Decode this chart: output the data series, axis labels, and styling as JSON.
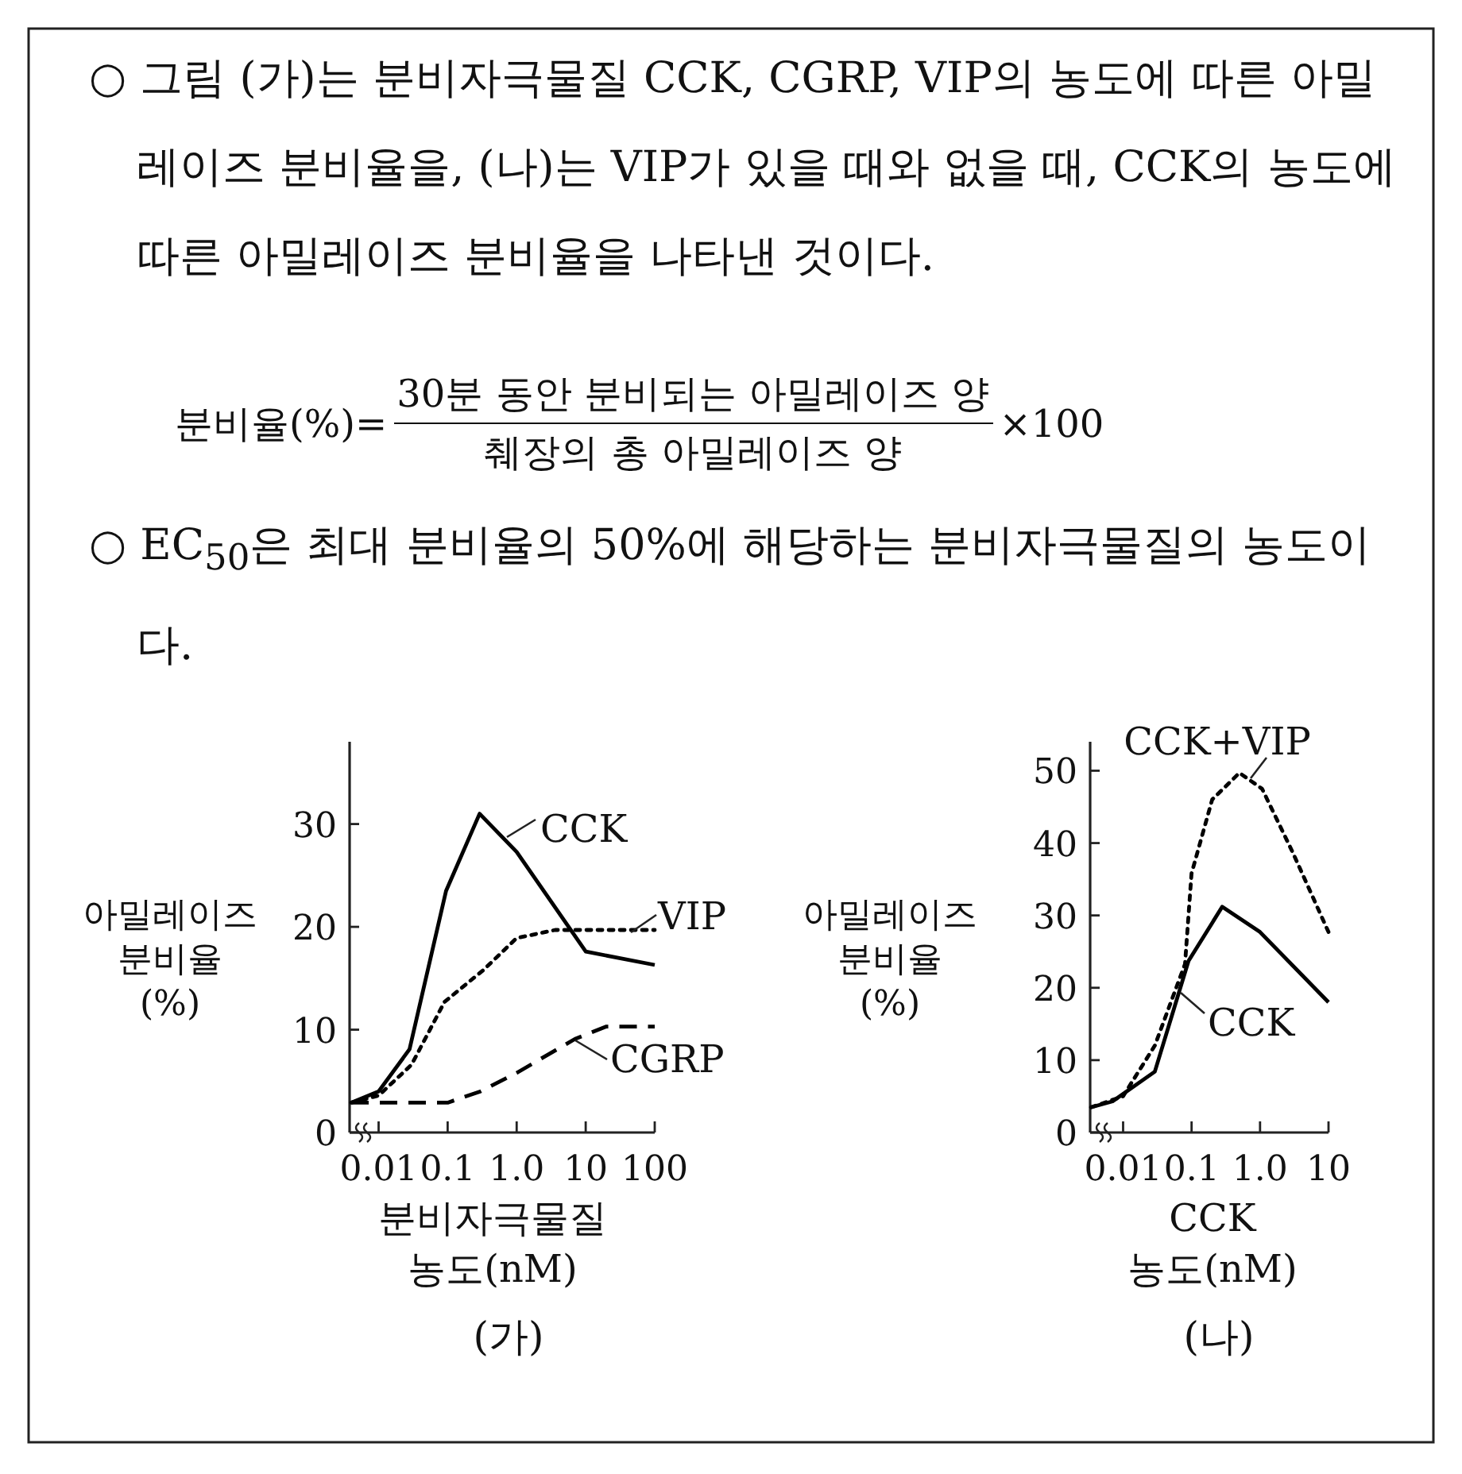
{
  "chart_data": [
    {
      "type": "line",
      "title": "(가)",
      "xlabel": "분비자극물질 농도(nM)",
      "ylabel": "아밀레이즈 분비율 (%)",
      "annotations": [
        "○ 그림 (가)는 분비자극물질 CCK, CGRP, VIP의 농도에 따른 아밀레이즈 분비율을, (나)는 VIP가 있을 때와 없을 때, CCK의 농도에 따른 아밀레이즈 분비율을 나타낸 것이다.",
        "분비율(%)=",
        "30분 동안 분비되는 아밀레이즈 양",
        "췌장의 총 아밀레이즈 양",
        "×100",
        "○ EC$_{50}$은 최대 분비율의 50%에 해당하는 분비자극물질의 농도이다."
      ],
      "log": "x",
      "xlim": [
        0.0038,
        100
      ],
      "ylim": [
        0,
        38
      ],
      "xticks": [
        0.01,
        0.1,
        {
          "value": 1,
          "label": "1.0"
        },
        10,
        100
      ],
      "yticks": [
        0,
        10,
        20,
        30
      ],
      "legend": false,
      "marker": "none",
      "series": [
        {
          "name": "CCK",
          "color": "#000000",
          "line_style": "solid",
          "x": [
            0.004,
            0.01,
            0.028,
            0.095,
            0.29,
            1.0,
            10,
            100
          ],
          "values": [
            2.9,
            4.0,
            8.1,
            23.5,
            31.0,
            27.3,
            17.6,
            16.3
          ]
        },
        {
          "name": "VIP",
          "color": "#000000",
          "line_style": "dotted",
          "x": [
            0.004,
            0.01,
            0.03,
            0.09,
            0.33,
            1.0,
            3.6,
            100
          ],
          "values": [
            2.9,
            3.6,
            6.6,
            12.7,
            15.8,
            18.9,
            19.7,
            19.7
          ]
        },
        {
          "name": "CGRP",
          "color": "#000000",
          "line_style": "dashed",
          "x": [
            0.004,
            0.1,
            0.3,
            1.0,
            7,
            20,
            100
          ],
          "values": [
            2.9,
            2.9,
            4.0,
            5.8,
            9.1,
            10.3,
            10.3
          ]
        }
      ]
    },
    {
      "type": "line",
      "title": "(나)",
      "xlabel": "CCK 농도(nM)",
      "ylabel": "아밀레이즈 분비율 (%)",
      "log": "x",
      "xlim": [
        0.0033,
        10
      ],
      "ylim": [
        0,
        54
      ],
      "xticks": [
        0.01,
        0.1,
        {
          "value": 1,
          "label": "1.0"
        },
        10
      ],
      "yticks": [
        0,
        10,
        20,
        30,
        40,
        50
      ],
      "legend": false,
      "marker": "none",
      "series": [
        {
          "name": "CCK",
          "color": "#000000",
          "line_style": "solid",
          "x": [
            0.0034,
            0.007,
            0.029,
            0.09,
            0.28,
            1.0,
            10
          ],
          "values": [
            3.5,
            4.3,
            8.4,
            23.7,
            31.2,
            27.7,
            18.0
          ]
        },
        {
          "name": "CCK+VIP",
          "color": "#000000",
          "line_style": "dotted",
          "x": [
            0.0034,
            0.01,
            0.029,
            0.08,
            0.1,
            0.2,
            0.5,
            1.07,
            3.0,
            10
          ],
          "values": [
            3.5,
            5.0,
            12,
            23.3,
            35.8,
            46,
            49.7,
            47.5,
            38.7,
            27.7
          ]
        }
      ]
    }
  ]
}
